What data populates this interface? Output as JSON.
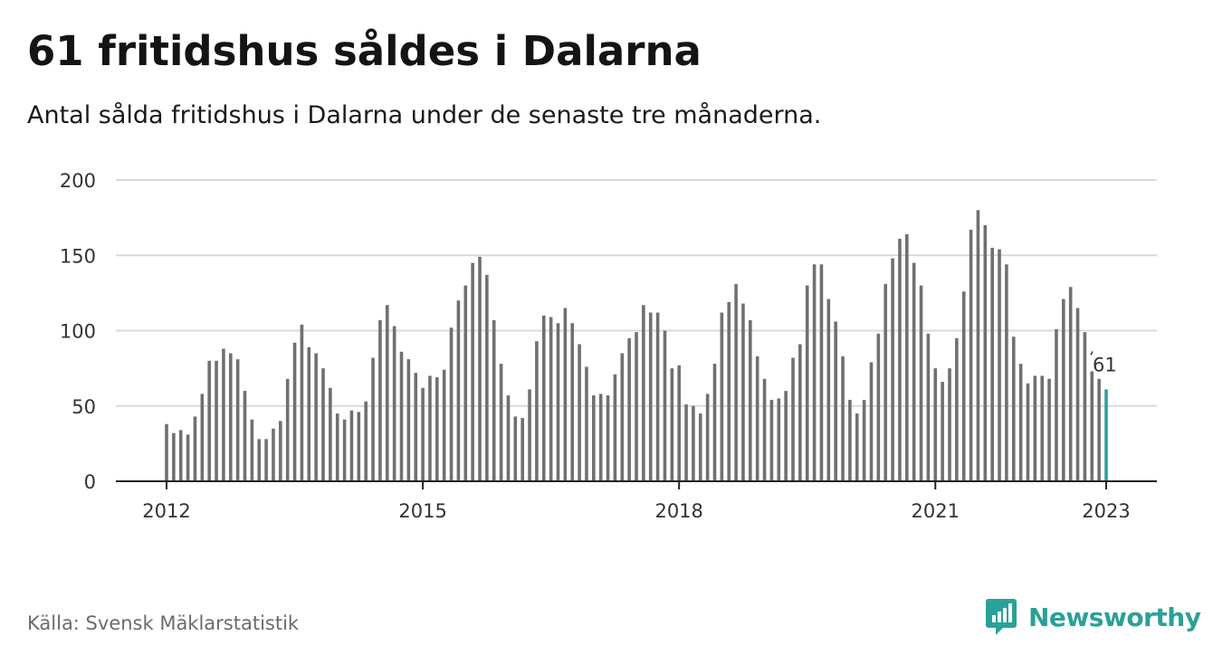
{
  "title": "61 fritidshus såldes i Dalarna",
  "subtitle": "Antal sålda fritidshus i Dalarna under de senaste tre månaderna.",
  "source": "Källa: Svensk Mäklarstatistik",
  "brand": {
    "name": "Newsworthy",
    "icon": "newsworthy-logo-icon"
  },
  "colors": {
    "bar": "#707070",
    "highlight": "#2aa198",
    "grid": "#d9d9d9",
    "axis": "#222222"
  },
  "chart_data": {
    "type": "bar",
    "title": "61 fritidshus såldes i Dalarna",
    "xlabel": "",
    "ylabel": "",
    "ylim": [
      0,
      200
    ],
    "yticks": [
      0,
      50,
      100,
      150,
      200
    ],
    "xticks": [
      {
        "label": "2012",
        "index": 0
      },
      {
        "label": "2015",
        "index": 36
      },
      {
        "label": "2018",
        "index": 72
      },
      {
        "label": "2021",
        "index": 108
      },
      {
        "label": "2023",
        "index": 132
      }
    ],
    "start": "2012-01",
    "frequency": "monthly",
    "grid": true,
    "legend": "none",
    "values": [
      38,
      32,
      34,
      31,
      43,
      58,
      80,
      80,
      88,
      85,
      81,
      60,
      41,
      28,
      28,
      35,
      40,
      68,
      92,
      104,
      89,
      85,
      75,
      62,
      45,
      41,
      47,
      46,
      53,
      82,
      107,
      117,
      103,
      86,
      81,
      72,
      62,
      70,
      69,
      74,
      102,
      120,
      130,
      145,
      149,
      137,
      107,
      78,
      57,
      43,
      42,
      61,
      93,
      110,
      109,
      105,
      115,
      105,
      91,
      76,
      57,
      58,
      57,
      71,
      85,
      95,
      99,
      117,
      112,
      112,
      100,
      75,
      77,
      51,
      50,
      45,
      58,
      78,
      112,
      119,
      131,
      118,
      107,
      83,
      68,
      54,
      55,
      60,
      82,
      91,
      130,
      144,
      144,
      121,
      106,
      83,
      54,
      45,
      54,
      79,
      98,
      131,
      148,
      161,
      164,
      145,
      130,
      98,
      75,
      66,
      75,
      95,
      126,
      167,
      180,
      170,
      155,
      154,
      144,
      96,
      78,
      65,
      70,
      70,
      68,
      101,
      121,
      129,
      115,
      99,
      73,
      68,
      61
    ],
    "highlight": {
      "value": 61,
      "label": "61"
    }
  }
}
